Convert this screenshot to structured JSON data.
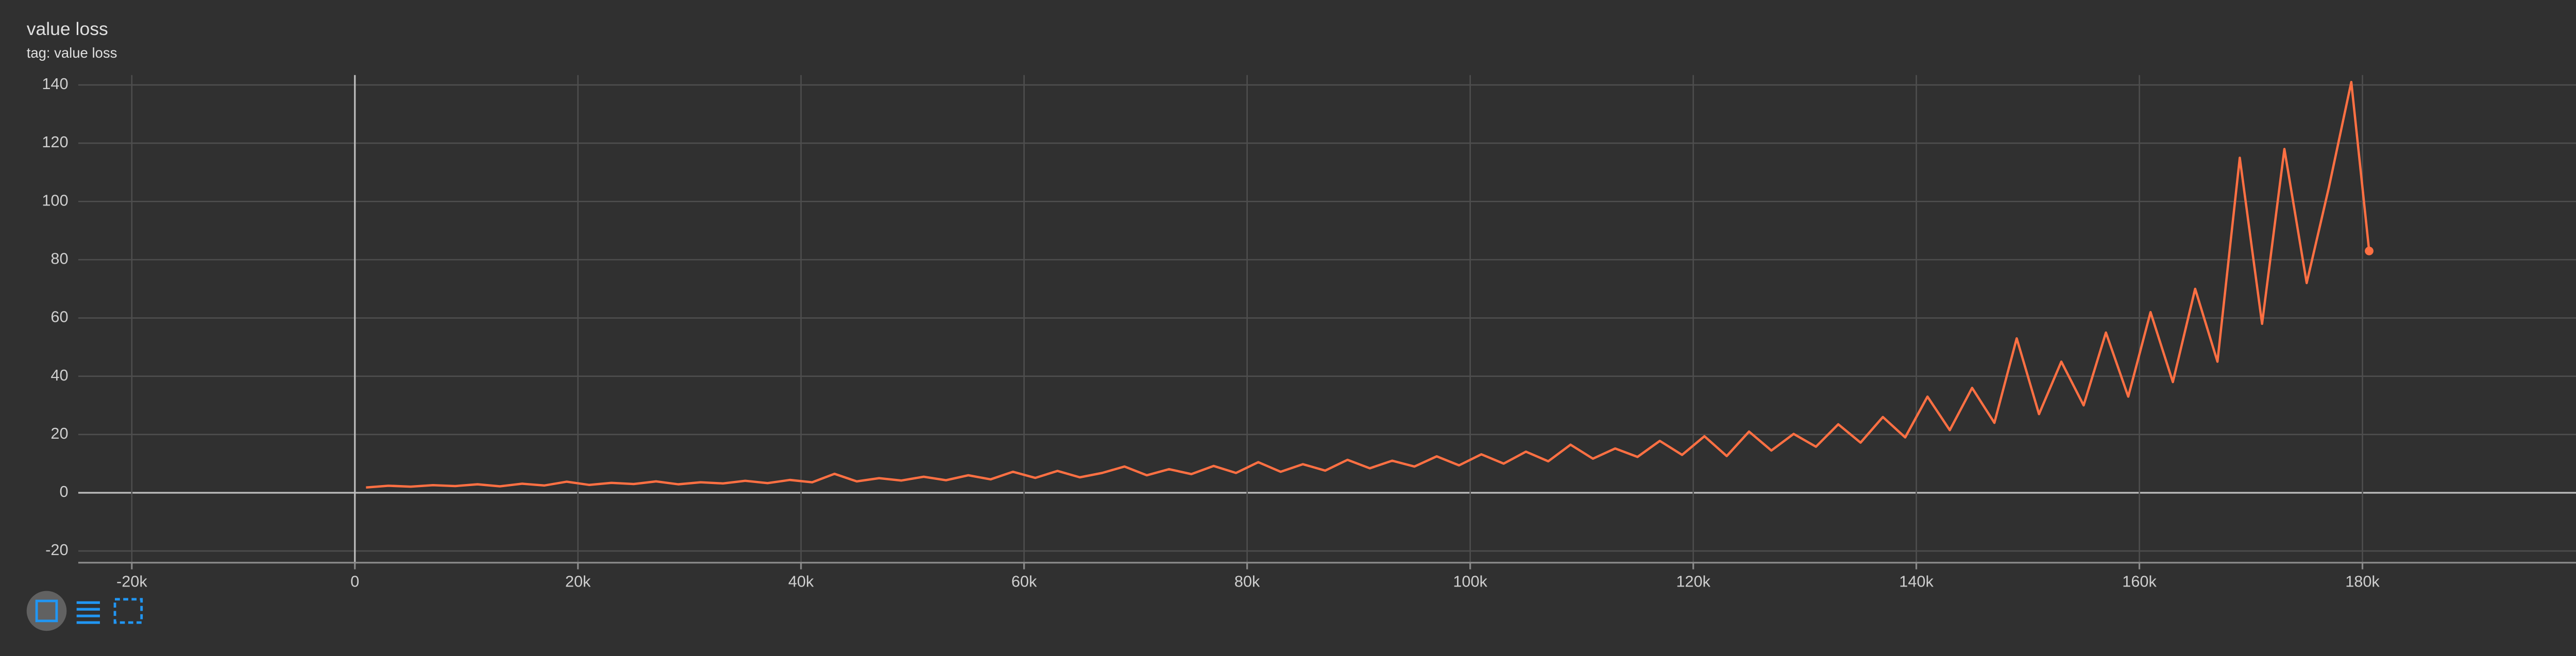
{
  "chart_data": {
    "type": "line",
    "title": "value loss",
    "subtitle": "tag: value loss",
    "x": [
      1000,
      3000,
      5000,
      7000,
      9000,
      11000,
      13000,
      15000,
      17000,
      19000,
      21000,
      23000,
      25000,
      27000,
      29000,
      31000,
      33000,
      35000,
      37000,
      39000,
      41000,
      43000,
      45000,
      47000,
      49000,
      51000,
      53000,
      55000,
      57000,
      59000,
      61000,
      63000,
      65000,
      67000,
      69000,
      71000,
      73000,
      75000,
      77000,
      79000,
      81000,
      83000,
      85000,
      87000,
      89000,
      91000,
      93000,
      95000,
      97000,
      99000,
      101000,
      103000,
      105000,
      107000,
      109000,
      111000,
      113000,
      115000,
      117000,
      119000,
      121000,
      123000,
      125000,
      127000,
      129000,
      131000,
      133000,
      135000,
      137000,
      139000,
      141000,
      143000,
      145000,
      147000,
      149000,
      151000,
      153000,
      155000,
      157000,
      159000,
      161000,
      163000,
      165000,
      167000,
      169000,
      171000,
      173000,
      175000,
      177000,
      179000,
      180600
    ],
    "series": [
      {
        "name": "value loss",
        "color": "#ff7043",
        "values": [
          1.8,
          2.4,
          2.1,
          2.6,
          2.3,
          2.9,
          2.2,
          3.1,
          2.5,
          3.8,
          2.7,
          3.4,
          3.0,
          3.9,
          2.9,
          3.6,
          3.2,
          4.1,
          3.3,
          4.4,
          3.6,
          6.5,
          3.9,
          5.0,
          4.2,
          5.5,
          4.3,
          6.0,
          4.6,
          7.2,
          5.1,
          7.5,
          5.3,
          6.8,
          9.0,
          6.0,
          8.1,
          6.4,
          9.2,
          6.8,
          10.5,
          7.2,
          9.8,
          7.6,
          11.3,
          8.4,
          11.0,
          9.0,
          12.5,
          9.4,
          13.2,
          10.0,
          14.1,
          10.8,
          16.5,
          11.7,
          15.2,
          12.3,
          17.8,
          13.0,
          19.4,
          12.6,
          21.0,
          14.5,
          20.2,
          15.8,
          23.5,
          17.2,
          26.0,
          19.0,
          33.0,
          21.5,
          36.0,
          24.0,
          53.0,
          27.0,
          45.0,
          30.0,
          55.0,
          33.0,
          62.0,
          38.0,
          70.0,
          45.0,
          115.0,
          58.0,
          118.0,
          72.0,
          105.0,
          141.0,
          83.0
        ]
      }
    ],
    "xlim": [
      -24800,
      199600
    ],
    "ylim": [
      -24,
      143.4
    ],
    "xticks": [
      {
        "value": -20000,
        "label": "-20k"
      },
      0,
      {
        "value": 20000,
        "label": "20k"
      },
      {
        "value": 40000,
        "label": "40k"
      },
      {
        "value": 60000,
        "label": "60k"
      },
      {
        "value": 80000,
        "label": "80k"
      },
      {
        "value": 100000,
        "label": "100k"
      },
      {
        "value": 120000,
        "label": "120k"
      },
      {
        "value": 140000,
        "label": "140k"
      },
      {
        "value": 160000,
        "label": "160k"
      },
      {
        "value": 180000,
        "label": "180k"
      }
    ],
    "yticks": [
      -20,
      0,
      20,
      40,
      60,
      80,
      100,
      120,
      140
    ],
    "grid": true
  }
}
